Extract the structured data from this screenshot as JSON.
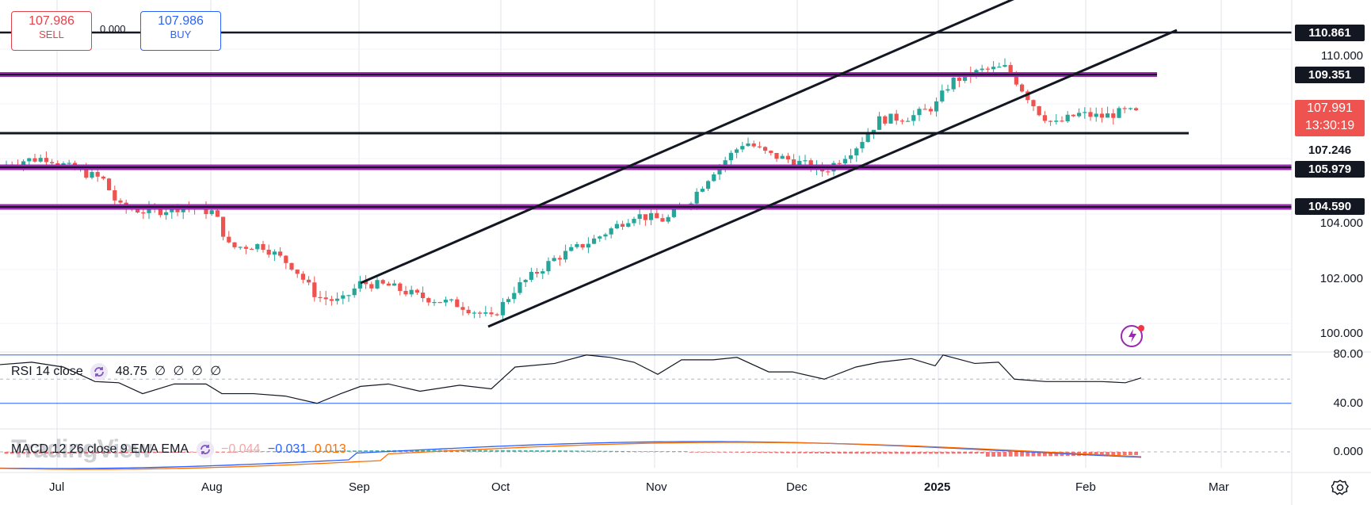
{
  "trade": {
    "sell_price": "107.986",
    "sell_label": "SELL",
    "buy_price": "107.986",
    "buy_label": "BUY",
    "spread": "0.000"
  },
  "price_axis": {
    "labels": [
      "110.000",
      "104.000",
      "102.000",
      "100.000"
    ],
    "tags": [
      {
        "value": "110.861",
        "style": "dark"
      },
      {
        "value": "109.351",
        "style": "dark"
      },
      {
        "value": "107.246",
        "style": "light"
      },
      {
        "value": "105.979",
        "style": "dark"
      },
      {
        "value": "104.590",
        "style": "dark"
      }
    ],
    "current_price": "107.991",
    "countdown": "13:30:19"
  },
  "time_axis": {
    "labels": [
      "Jul",
      "Aug",
      "Sep",
      "Oct",
      "Nov",
      "Dec",
      "2025",
      "Feb",
      "Mar"
    ]
  },
  "rsi": {
    "name": "RSI 14 close",
    "value": "48.75",
    "extra": [
      "∅",
      "∅",
      "∅",
      "∅"
    ],
    "axis": [
      "80.00",
      "40.00"
    ]
  },
  "macd": {
    "name": "MACD 12 26 close 9 EMA EMA",
    "histogram": "−0.044",
    "macd": "−0.031",
    "signal": "0.013",
    "axis": [
      "0.000"
    ]
  },
  "watermark": "TradingView",
  "colors": {
    "up": "#26a69a",
    "down": "#ef5350",
    "level_purple": "#9c27b0",
    "macd_line": "#2962ff",
    "signal_line": "#ff6d00",
    "sell": "#e0434b",
    "buy": "#2962ff"
  },
  "icons": [
    "settings-icon",
    "flash-icon",
    "cycle-icon"
  ]
}
